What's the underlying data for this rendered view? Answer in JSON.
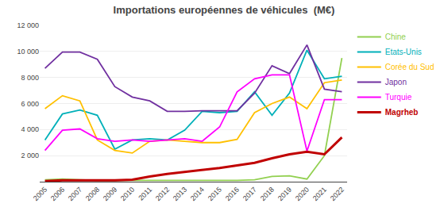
{
  "chart_data": {
    "type": "line",
    "title": "Importations européennes de véhicules  (M€)",
    "x": [
      2005,
      2006,
      2007,
      2008,
      2009,
      2010,
      2011,
      2012,
      2013,
      2014,
      2015,
      2016,
      2017,
      2018,
      2019,
      2020,
      2021,
      2022
    ],
    "series": [
      {
        "name": "Chine",
        "color": "#92d050",
        "line_style": "solid",
        "values": [
          150,
          200,
          150,
          100,
          100,
          100,
          100,
          100,
          100,
          100,
          100,
          100,
          150,
          400,
          450,
          200,
          2000,
          9500
        ]
      },
      {
        "name": "Etats-Unis",
        "color": "#00b0b9",
        "line_style": "solid",
        "values": [
          3200,
          5200,
          5500,
          5100,
          2500,
          3200,
          3300,
          3200,
          3950,
          5400,
          5300,
          5400,
          6900,
          5100,
          6800,
          10100,
          7900,
          8100
        ]
      },
      {
        "name": "Corée du Sud",
        "color": "#ffc000",
        "line_style": "solid",
        "values": [
          5600,
          6600,
          6200,
          3200,
          2400,
          2200,
          3100,
          3200,
          3100,
          3000,
          3000,
          3250,
          5300,
          6000,
          6500,
          5600,
          7600,
          7800
        ]
      },
      {
        "name": "Japon",
        "color": "#7030a0",
        "line_style": "solid",
        "values": [
          8700,
          9950,
          9950,
          9400,
          7300,
          6500,
          6200,
          5400,
          5400,
          5450,
          5450,
          5450,
          6800,
          8900,
          8300,
          10500,
          7100,
          6900
        ]
      },
      {
        "name": "Turquie",
        "color": "#ff00ff",
        "line_style": "solid",
        "values": [
          2400,
          3950,
          4050,
          3300,
          3100,
          3200,
          3100,
          3200,
          3300,
          3100,
          4200,
          6900,
          7900,
          8200,
          8200,
          2350,
          6300,
          6300
        ]
      },
      {
        "name": "Magrheb",
        "color": "#c00000",
        "line_style": "bold",
        "values": [
          50,
          100,
          100,
          100,
          100,
          150,
          400,
          600,
          750,
          900,
          1050,
          1250,
          1450,
          1800,
          2100,
          2300,
          2100,
          3400
        ]
      }
    ],
    "xlim": [
      2004.7,
      2022.3
    ],
    "xticks": [
      2005,
      2006,
      2007,
      2008,
      2009,
      2010,
      2011,
      2012,
      2013,
      2014,
      2015,
      2016,
      2017,
      2018,
      2019,
      2020,
      2021,
      2022
    ],
    "ylim": [
      0,
      12000
    ],
    "yticks": [
      {
        "value": 0,
        "label": ""
      },
      {
        "value": 2000,
        "label": "2 000"
      },
      {
        "value": 4000,
        "label": "4 000"
      },
      {
        "value": 6000,
        "label": "6 000"
      },
      {
        "value": 8000,
        "label": "8 000"
      },
      {
        "value": 10000,
        "label": "10 000"
      },
      {
        "value": 12000,
        "label": "12 000"
      }
    ],
    "grid": "y",
    "legend": "right"
  }
}
